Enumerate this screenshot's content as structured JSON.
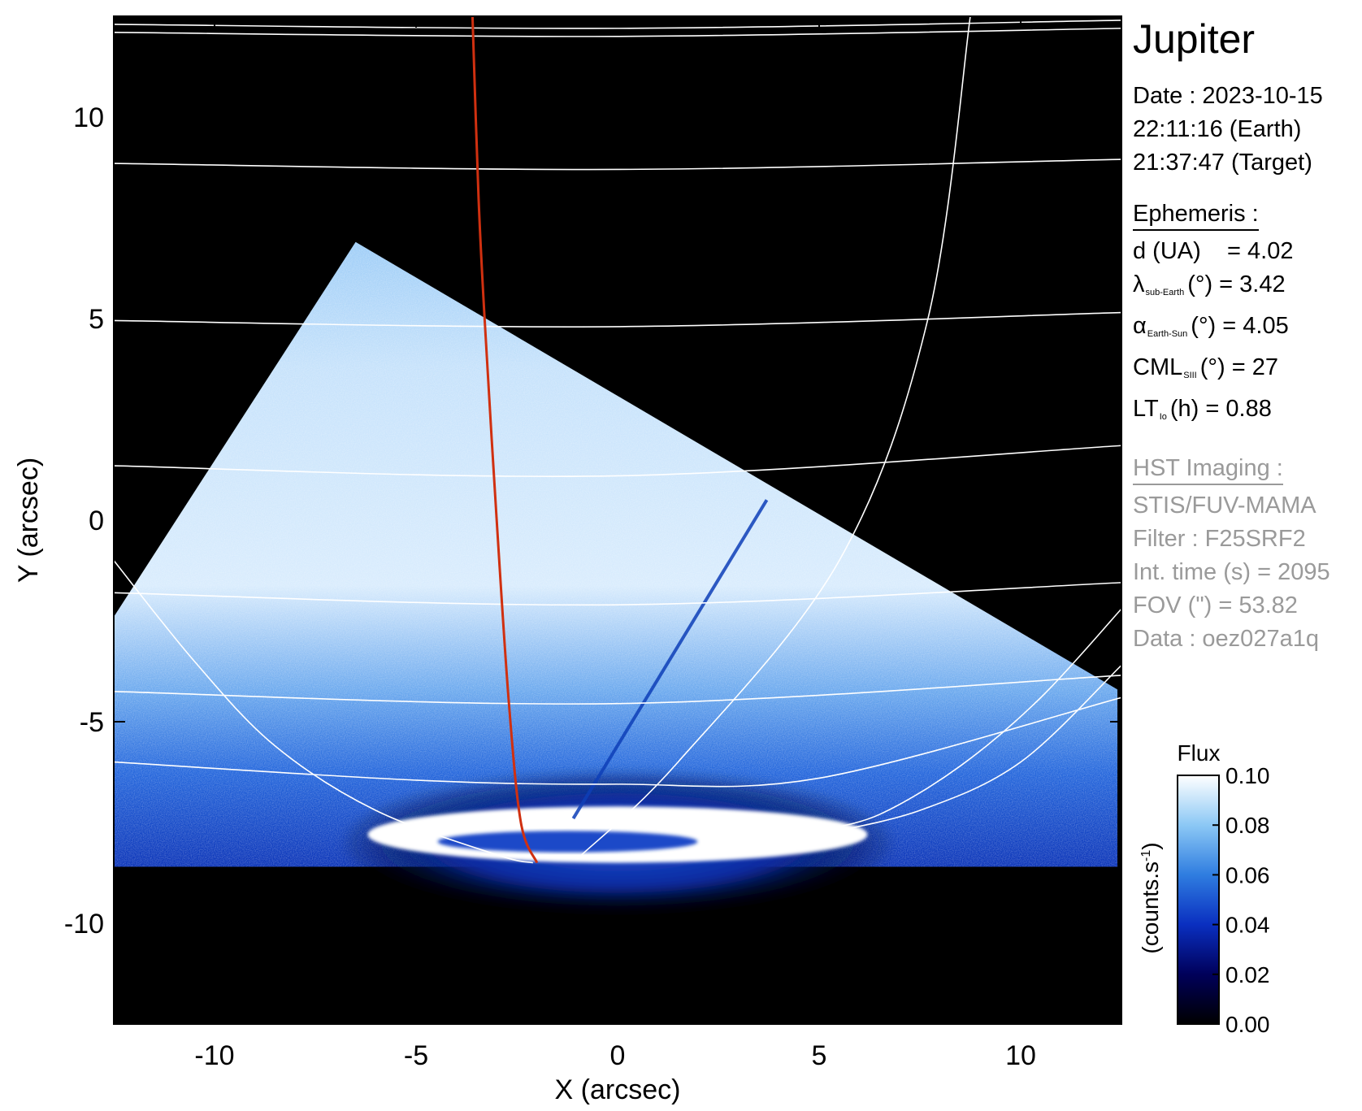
{
  "chart_data": {
    "type": "image",
    "title": "Jupiter",
    "xlabel": "X (arcsec)",
    "ylabel": "Y (arcsec)",
    "xlim": [
      -12.5,
      12.5
    ],
    "ylim": [
      -12.5,
      12.5
    ],
    "xticks": [
      -10,
      -5,
      0,
      5,
      10
    ],
    "yticks": [
      -10,
      -5,
      0,
      5,
      10
    ],
    "colorbar": {
      "label": "Flux",
      "unit": "(counts.s",
      "unit_exp": "-1",
      "unit_close": ")",
      "ticks": [
        "0.00",
        "0.02",
        "0.04",
        "0.06",
        "0.08",
        "0.10"
      ],
      "range": [
        0,
        0.1
      ],
      "colors": [
        "#000000",
        "#00005a",
        "#0a2fc0",
        "#2f7de0",
        "#8cc8f5",
        "#ffffff"
      ]
    },
    "overlays": {
      "grid_color": "#ffffff",
      "central_meridian_color": "#d03010",
      "central_meridian_points": [
        [
          -3.6,
          12.5
        ],
        [
          -3.45,
          8
        ],
        [
          -3.3,
          5
        ],
        [
          -3.0,
          0
        ],
        [
          -2.7,
          -4.5
        ],
        [
          -2.4,
          -7.5
        ],
        [
          -2.0,
          -8.5
        ]
      ],
      "latitude_lines": [
        [
          [
            -12.5,
            12.3
          ],
          [
            0,
            12.2
          ],
          [
            12.5,
            12.4
          ]
        ],
        [
          [
            -12.5,
            12.1
          ],
          [
            0,
            12.0
          ],
          [
            12.5,
            12.2
          ]
        ],
        [
          [
            -12.5,
            8.85
          ],
          [
            0,
            8.7
          ],
          [
            12.5,
            8.95
          ]
        ],
        [
          [
            -12.5,
            4.95
          ],
          [
            0,
            4.8
          ],
          [
            12.5,
            5.15
          ]
        ],
        [
          [
            -12.5,
            1.35
          ],
          [
            0,
            1.1
          ],
          [
            12.5,
            1.85
          ]
        ],
        [
          [
            -12.5,
            -1.8
          ],
          [
            0,
            -2.1
          ],
          [
            12.5,
            -1.55
          ]
        ],
        [
          [
            -12.5,
            -4.25
          ],
          [
            0,
            -4.55
          ],
          [
            12.5,
            -3.85
          ]
        ],
        [
          [
            -12.5,
            -6.0
          ],
          [
            -5,
            -6.45
          ],
          [
            0,
            -6.55
          ],
          [
            5,
            -6.4
          ],
          [
            12.5,
            -4.4
          ]
        ]
      ],
      "longitude_lines": [
        [
          [
            8.75,
            12.5
          ],
          [
            7.7,
            5
          ],
          [
            5.5,
            -1
          ],
          [
            1.5,
            -6
          ],
          [
            -1,
            -8.4
          ]
        ],
        [
          [
            -12.5,
            -1.0
          ],
          [
            -10.5,
            -3.5
          ],
          [
            -8.5,
            -5.6
          ],
          [
            -6,
            -7.2
          ],
          [
            -3,
            -8.3
          ],
          [
            -2.1,
            -8.5
          ]
        ],
        [
          [
            12.5,
            -2.2
          ],
          [
            10.5,
            -4.4
          ],
          [
            8.5,
            -6.1
          ],
          [
            6.5,
            -7.3
          ],
          [
            5,
            -7.7
          ]
        ],
        [
          [
            12.5,
            -3.6
          ],
          [
            10,
            -6.0
          ],
          [
            7.5,
            -7.2
          ],
          [
            5,
            -7.8
          ]
        ]
      ]
    },
    "emission": {
      "main_oval_center": [
        0.0,
        -7.8
      ],
      "main_oval_radii": [
        6.2,
        0.7
      ]
    }
  },
  "info": {
    "title": "Jupiter",
    "date_line": "Date : 2023-10-15",
    "time_earth": "22:11:16 (Earth)",
    "time_target": "21:37:47 (Target)",
    "ephemeris_header": "Ephemeris :",
    "d_label": "d (UA)",
    "d_value": "= 4.02",
    "lambda_sym": "λ",
    "lambda_sub": "sub-Earth",
    "lambda_rest": "(°) = 3.42",
    "alpha_sym": "α",
    "alpha_sub": "Earth-Sun",
    "alpha_rest": "(°) = 4.05",
    "cml_sym": "CML",
    "cml_sub": "SIII",
    "cml_rest": "(°) = 27",
    "lt_sym": "LT",
    "lt_sub": "Io",
    "lt_rest": "(h) = 0.88",
    "hst_header": "HST Imaging :",
    "instrument": "STIS/FUV-MAMA",
    "filter": "Filter : F25SRF2",
    "int_time": "Int. time (s) = 2095",
    "fov": "FOV (\") = 53.82",
    "data_id": "Data : oez027a1q"
  }
}
